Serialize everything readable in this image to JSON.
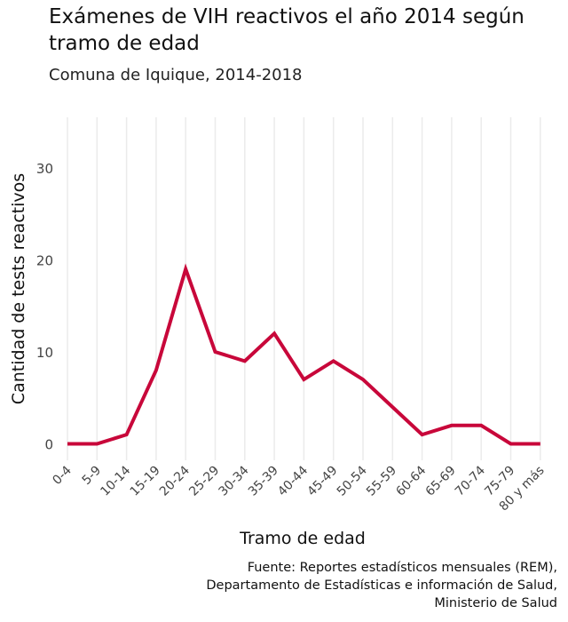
{
  "chart_data": {
    "type": "line",
    "title": "Exámenes de VIH reactivos el año 2014 según tramo de edad",
    "subtitle": "Comuna de Iquique, 2014-2018",
    "xlabel": "Tramo de edad",
    "ylabel": "Cantidad de tests reactivos",
    "categories": [
      "0-4",
      "5-9",
      "10-14",
      "15-19",
      "20-24",
      "25-29",
      "30-34",
      "35-39",
      "40-44",
      "45-49",
      "50-54",
      "55-59",
      "60-64",
      "65-69",
      "70-74",
      "75-79",
      "80 y más"
    ],
    "series": [
      {
        "values": [
          0,
          0,
          1,
          8,
          19,
          10,
          9,
          12,
          7,
          9,
          7,
          4,
          1,
          2,
          2,
          0,
          0
        ]
      }
    ],
    "ylim": [
      -3,
      36
    ],
    "yticks": [
      0,
      10,
      20,
      30
    ],
    "grid": true,
    "line_color": "#c8073a",
    "caption": [
      "Fuente: Reportes estadísticos mensuales (REM),",
      "Departamento de Estadísticas e información de Salud,",
      "Ministerio de Salud"
    ]
  }
}
